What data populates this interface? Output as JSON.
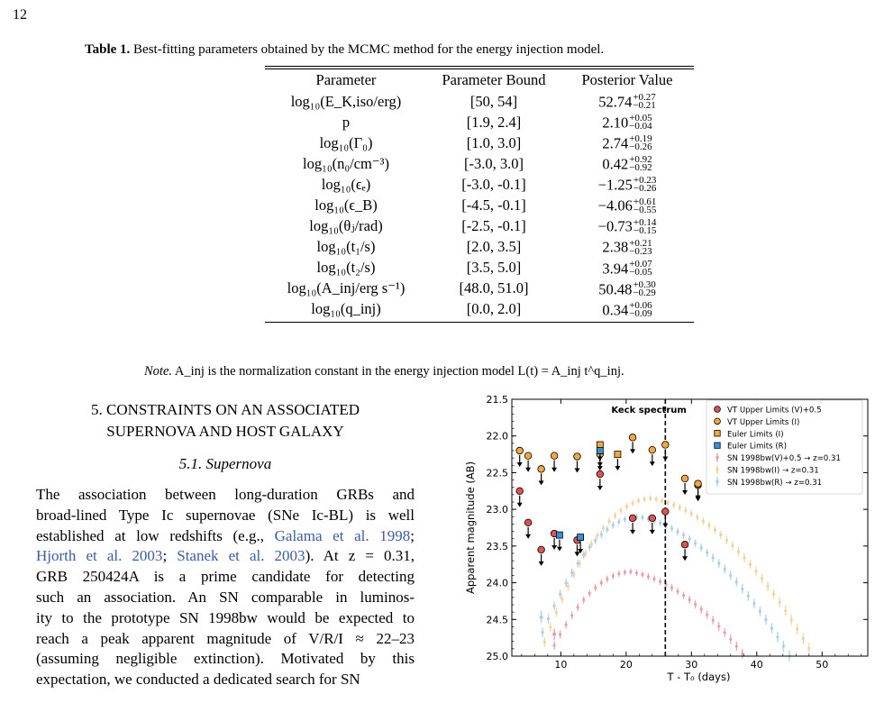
{
  "page_number": "12",
  "table": {
    "caption_label": "Table 1.",
    "caption_text": "Best-fitting parameters obtained by the MCMC method for the energy injection model.",
    "headers": [
      "Parameter",
      "Parameter Bound",
      "Posterior Value"
    ],
    "rows": [
      {
        "param": "log₁₀(E_K,iso/erg)",
        "bound": "[50, 54]",
        "value": "52.74",
        "plus": "+0.27",
        "minus": "−0.21"
      },
      {
        "param": "p",
        "bound": "[1.9, 2.4]",
        "value": "2.10",
        "plus": "+0.05",
        "minus": "−0.04"
      },
      {
        "param": "log₁₀(Γ₀)",
        "bound": "[1.0, 3.0]",
        "value": "2.74",
        "plus": "+0.19",
        "minus": "−0.26"
      },
      {
        "param": "log₁₀(n₀/cm⁻³)",
        "bound": "[-3.0, 3.0]",
        "value": "0.42",
        "plus": "+0.92",
        "minus": "−0.92"
      },
      {
        "param": "log₁₀(ϵₑ)",
        "bound": "[-3.0, -0.1]",
        "value": "−1.25",
        "plus": "+0.23",
        "minus": "−0.26"
      },
      {
        "param": "log₁₀(ϵ_B)",
        "bound": "[-4.5, -0.1]",
        "value": "−4.06",
        "plus": "+0.61",
        "minus": "−0.55"
      },
      {
        "param": "log₁₀(θⱼ/rad)",
        "bound": "[-2.5, -0.1]",
        "value": "−0.73",
        "plus": "+0.14",
        "minus": "−0.15"
      },
      {
        "param": "log₁₀(t₁/s)",
        "bound": "[2.0, 3.5]",
        "value": "2.38",
        "plus": "+0.21",
        "minus": "−0.23"
      },
      {
        "param": "log₁₀(t₂/s)",
        "bound": "[3.5, 5.0]",
        "value": "3.94",
        "plus": "+0.07",
        "minus": "−0.05"
      },
      {
        "param": "log₁₀(A_inj/erg s⁻¹)",
        "bound": "[48.0, 51.0]",
        "value": "50.48",
        "plus": "+0.30",
        "minus": "−0.29"
      },
      {
        "param": "log₁₀(q_inj)",
        "bound": "[0.0, 2.0]",
        "value": "0.34",
        "plus": "+0.06",
        "minus": "−0.09"
      }
    ],
    "note_label": "Note.",
    "note_text": "A_inj is the normalization constant in the energy injection model L(t) = A_inj t^q_inj."
  },
  "section": {
    "heading_line1": "5. CONSTRAINTS ON AN ASSOCIATED",
    "heading_line2": "SUPERNOVA AND HOST GALAXY",
    "subheading": "5.1. Supernova",
    "lines": [
      "The association between long-duration GRBs and",
      "broad-lined Type Ic supernovae (SNe Ic-BL) is well",
      "established at low redshifts (e.g., Galama et al. 1998;",
      "Hjorth et al. 2003; Stanek et al. 2003). At z = 0.31,",
      "GRB 250424A is a prime candidate for detecting",
      "such an association. An SN comparable in luminos-",
      "ity to the prototype SN 1998bw would be expected to",
      "reach a peak apparent magnitude of V/R/I ≈ 22–23",
      "(assuming negligible extinction). Motivated by this",
      "expectation, we conducted a dedicated search for SN"
    ]
  },
  "chart_data": {
    "type": "scatter",
    "xlabel": "T - T₀ (days)",
    "ylabel": "Apparent magnitude (AB)",
    "xlim": [
      2.5,
      57
    ],
    "ylim": [
      25.0,
      21.5
    ],
    "y_inverted": true,
    "xticks": [
      10,
      20,
      30,
      40,
      50
    ],
    "yticks": [
      21.5,
      22.0,
      22.5,
      23.0,
      23.5,
      24.0,
      24.5,
      25.0
    ],
    "legend_position": "top-right",
    "annotation": {
      "text": "Keck spectrum",
      "x": 26
    },
    "colors": {
      "vt_v": "#e05252",
      "vt_i": "#f2a93b",
      "euler_i": "#f2a93b",
      "euler_r": "#3a8fdc",
      "sn_v": "#e8a0a4",
      "sn_i": "#f5d19a",
      "sn_r": "#a8cdee"
    },
    "series": [
      {
        "name": "VT Upper Limits (V)+0.5",
        "marker": "circle",
        "color": "#e05252",
        "upper_limit": true,
        "points": [
          [
            3.7,
            22.75
          ],
          [
            5.0,
            23.18
          ],
          [
            7.0,
            23.55
          ],
          [
            9.0,
            23.33
          ],
          [
            12.5,
            23.42
          ],
          [
            16.0,
            22.52
          ],
          [
            21.0,
            23.12
          ],
          [
            24.0,
            23.12
          ],
          [
            26.0,
            23.03
          ],
          [
            29.0,
            23.48
          ],
          [
            31.0,
            22.67
          ]
        ]
      },
      {
        "name": "VT Upper Limits (I)",
        "marker": "circle",
        "color": "#f2a93b",
        "upper_limit": true,
        "points": [
          [
            3.7,
            22.2
          ],
          [
            5.0,
            22.27
          ],
          [
            7.0,
            22.45
          ],
          [
            9.0,
            22.27
          ],
          [
            12.5,
            22.28
          ],
          [
            16.0,
            22.25
          ],
          [
            21.0,
            22.02
          ],
          [
            24.0,
            22.19
          ],
          [
            26.0,
            22.12
          ],
          [
            29.0,
            22.58
          ],
          [
            31.0,
            22.65
          ]
        ]
      },
      {
        "name": "Euler Limits (I)",
        "marker": "square",
        "color": "#f2a93b",
        "upper_limit": true,
        "points": [
          [
            16.0,
            22.12
          ],
          [
            18.7,
            22.25
          ]
        ]
      },
      {
        "name": "Euler Limits (R)",
        "marker": "square",
        "color": "#3a8fdc",
        "upper_limit": true,
        "points": [
          [
            9.8,
            23.35
          ],
          [
            13.0,
            23.38
          ],
          [
            16.0,
            22.2
          ]
        ]
      },
      {
        "name": "SN 1998bw(V)+0.5 → z=0.31",
        "marker": "errorbar",
        "color": "#e8a0a4",
        "peak_x": 20.8,
        "peak_y": 23.85
      },
      {
        "name": "SN 1998bw(I) → z=0.31",
        "marker": "errorbar",
        "color": "#f5d19a",
        "peak_x": 24.0,
        "peak_y": 22.85
      },
      {
        "name": "SN 1998bw(R) → z=0.31",
        "marker": "errorbar",
        "color": "#a8cdee",
        "peak_x": 22.0,
        "peak_y": 23.1
      }
    ]
  }
}
